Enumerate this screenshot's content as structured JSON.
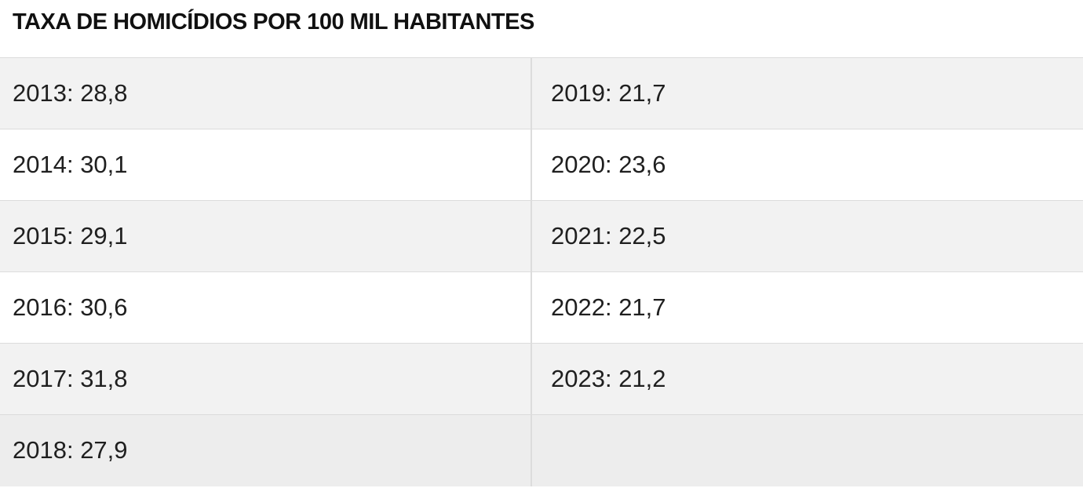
{
  "title": "TAXA DE HOMICÍDIOS POR 100 MIL HABITANTES",
  "rows": [
    {
      "left": "2013: 28,8",
      "right": "2019: 21,7"
    },
    {
      "left": "2014: 30,1",
      "right": "2020: 23,6"
    },
    {
      "left": "2015: 29,1",
      "right": "2021: 22,5"
    },
    {
      "left": "2016: 30,6",
      "right": "2022: 21,7"
    },
    {
      "left": "2017: 31,8",
      "right": "2023: 21,2"
    },
    {
      "left": "2018: 27,9",
      "right": ""
    }
  ]
}
